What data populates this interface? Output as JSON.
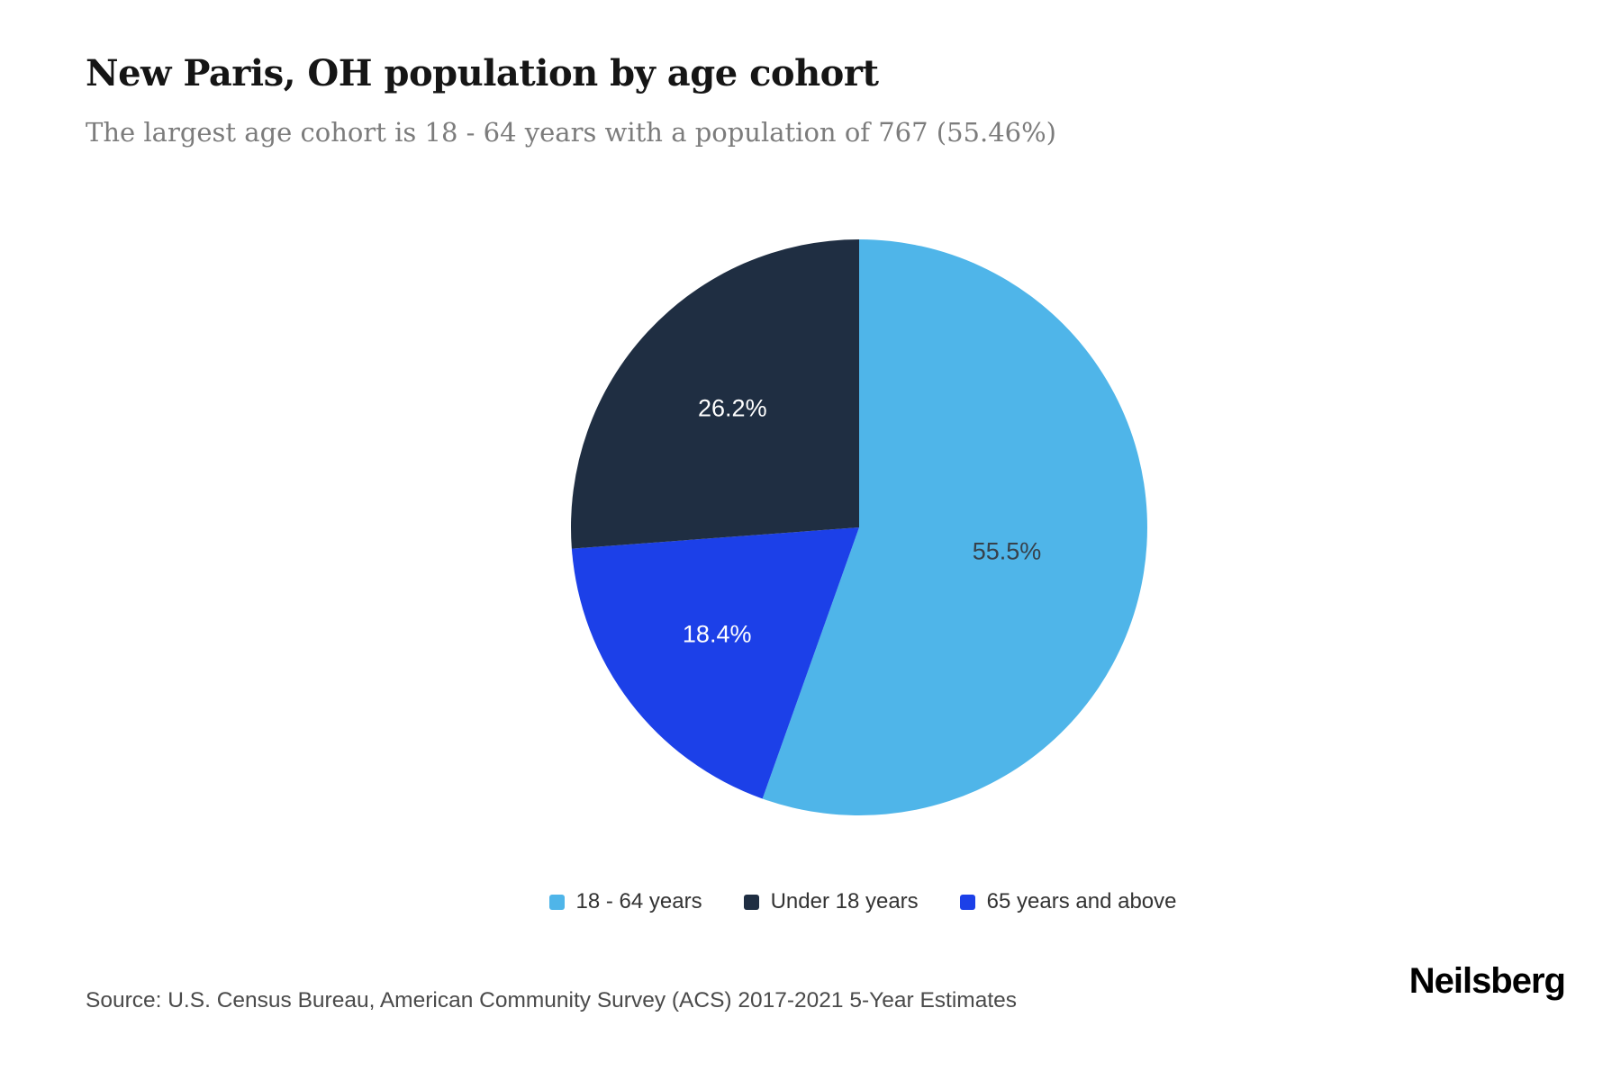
{
  "header": {
    "title": "New Paris, OH population by age cohort",
    "subtitle": "The largest age cohort is 18 - 64 years with a population of 767 (55.46%)"
  },
  "chart_data": {
    "type": "pie",
    "title": "New Paris, OH population by age cohort",
    "categories": [
      "18 - 64 years",
      "Under 18 years",
      "65 years and above"
    ],
    "values": [
      55.5,
      26.2,
      18.4
    ],
    "legend_position": "bottom",
    "slices": [
      {
        "label": "18 - 64 years",
        "value": 55.5,
        "display": "55.5%",
        "color": "#4fb5e9",
        "label_color": "#37414b",
        "label_r": 0.52
      },
      {
        "label": "65 years and above",
        "value": 18.4,
        "display": "18.4%",
        "color": "#1c40e8",
        "label_color": "#ffffff",
        "label_r": 0.62
      },
      {
        "label": "Under 18 years",
        "value": 26.2,
        "display": "26.2%",
        "color": "#1f2e42",
        "label_color": "#ffffff",
        "label_r": 0.6
      }
    ]
  },
  "legend": {
    "items": [
      {
        "label": "18 - 64 years",
        "color": "#4fb5e9"
      },
      {
        "label": "Under 18 years",
        "color": "#1f2e42"
      },
      {
        "label": "65 years and above",
        "color": "#1c40e8"
      }
    ]
  },
  "footer": {
    "source": "Source: U.S. Census Bureau, American Community Survey (ACS) 2017-2021 5-Year Estimates",
    "brand": "Neilsberg"
  }
}
